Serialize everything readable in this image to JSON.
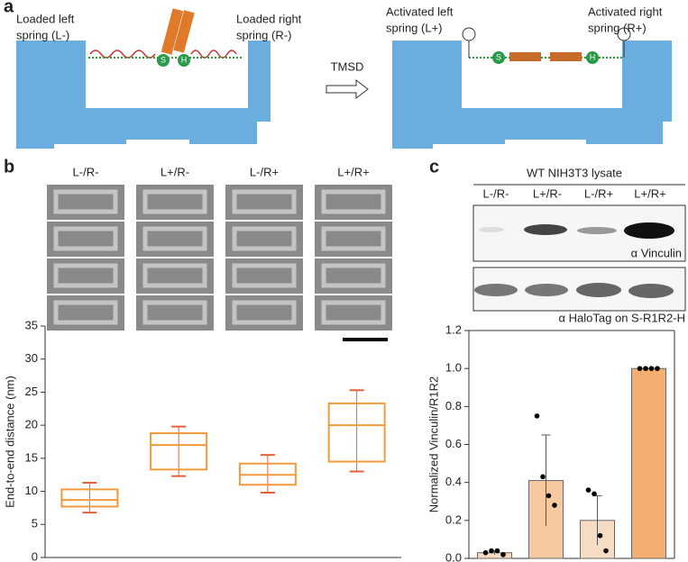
{
  "panels": {
    "a": "a",
    "b": "b",
    "c": "c"
  },
  "diagram": {
    "loaded_left": [
      "Loaded left",
      "spring (L-)"
    ],
    "loaded_right": [
      "Loaded right",
      "spring (R-)"
    ],
    "arrow_label": "TMSD",
    "activated_left": [
      "Activated left",
      "spring (L+)"
    ],
    "activated_right": [
      "Activated right",
      "spring (R+)"
    ],
    "s": "S",
    "h": "H"
  },
  "micrographs": {
    "columns": [
      "L-/R-",
      "L+/R-",
      "L-/R+",
      "L+/R+"
    ]
  },
  "blot": {
    "title": "WT NIH3T3 lysate",
    "lanes": [
      "L-/R-",
      "L+/R-",
      "L-/R+",
      "L+/R+"
    ],
    "top_label": "α Vinculin",
    "bottom_label": "α HaloTag on S-R1R2-H"
  },
  "chart_data": [
    {
      "type": "box",
      "ylabel": "End-to-end distance (nm)",
      "categories": [
        "L-/R-",
        "L+/R-",
        "L-/R+",
        "L+/R+"
      ],
      "boxes": [
        {
          "low": 6.8,
          "q1": 7.7,
          "median": 8.7,
          "q3": 10.3,
          "high": 11.3
        },
        {
          "low": 12.3,
          "q1": 13.3,
          "median": 17,
          "q3": 18.8,
          "high": 19.8
        },
        {
          "low": 9.8,
          "q1": 11,
          "median": 12.5,
          "q3": 14.2,
          "high": 15.5
        },
        {
          "low": 13,
          "q1": 14.5,
          "median": 20,
          "q3": 23.3,
          "high": 25.3
        }
      ],
      "color": "#f39a3c",
      "whisker_color": "#e5603a",
      "ylim": [
        0,
        35
      ],
      "yticks": [
        0,
        5,
        10,
        15,
        20,
        25,
        30,
        35
      ]
    },
    {
      "type": "bar",
      "ylabel": "Normalized Vinculin/R1R2",
      "categories": [
        "L-/R-",
        "L+/R-",
        "L-/R+",
        "L+/R+"
      ],
      "values": [
        0.03,
        0.41,
        0.2,
        1.0
      ],
      "errors": [
        0.01,
        0.24,
        0.13,
        0
      ],
      "points": [
        [
          0.03,
          0.04,
          0.04,
          0.02
        ],
        [
          0.75,
          0.43,
          0.33,
          0.28
        ],
        [
          0.36,
          0.34,
          0.12,
          0.04
        ],
        [
          1.0,
          1.0,
          1.0,
          1.0
        ]
      ],
      "colors": [
        "#f7d9bf",
        "#f7c9a0",
        "#f7dcc4",
        "#f4ae70"
      ],
      "ylim": [
        0,
        1.2
      ],
      "yticks": [
        {
          "value": 0,
          "label": "0.0"
        },
        {
          "value": 0.2,
          "label": "0.2"
        },
        {
          "value": 0.4,
          "label": "0.4"
        },
        {
          "value": 0.6,
          "label": "0.6"
        },
        {
          "value": 0.8,
          "label": "0.8"
        },
        {
          "value": 1.0,
          "label": "1.0"
        },
        {
          "value": 1.2,
          "label": "1.2"
        }
      ]
    }
  ]
}
